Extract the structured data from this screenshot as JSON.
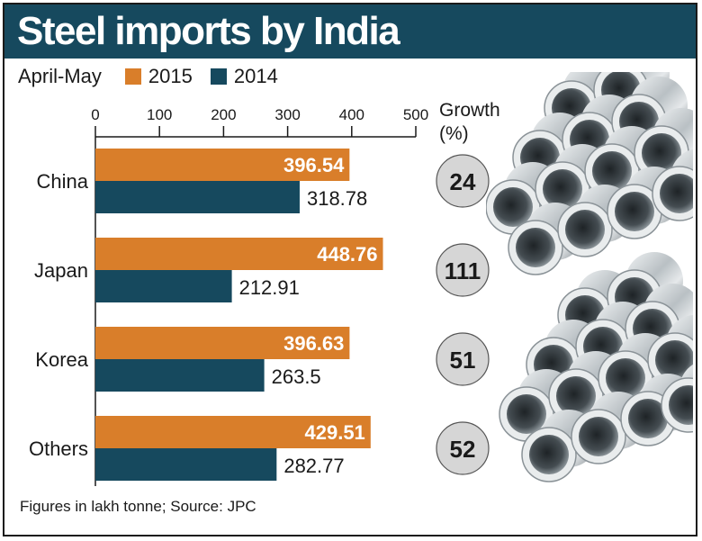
{
  "header": {
    "title": "Steel imports by India"
  },
  "legend": {
    "period": "April-May",
    "items": [
      {
        "label": "2015",
        "color": "#d97e2a"
      },
      {
        "label": "2014",
        "color": "#16495e"
      }
    ]
  },
  "growth_header": {
    "line1": "Growth",
    "line2": "(%)"
  },
  "footnote": "Figures in lakh tonne; Source: JPC",
  "chart_data": {
    "type": "bar",
    "orientation": "horizontal",
    "title": "Steel imports by India",
    "subtitle": "April-May",
    "categories": [
      "China",
      "Japan",
      "Korea",
      "Others"
    ],
    "series": [
      {
        "name": "2015",
        "color": "#d97e2a",
        "values": [
          396.54,
          448.76,
          396.63,
          429.51
        ],
        "labels": [
          "396.54",
          "448.76",
          "396.63",
          "429.51"
        ]
      },
      {
        "name": "2014",
        "color": "#16495e",
        "values": [
          318.78,
          212.91,
          263.5,
          282.77
        ],
        "labels": [
          "318.78",
          "212.91",
          "263.5",
          "282.77"
        ]
      }
    ],
    "growth_percent": [
      "24",
      "111",
      "51",
      "52"
    ],
    "x_ticks": [
      "0",
      "100",
      "200",
      "300",
      "400",
      "500"
    ],
    "xlim": [
      0,
      500
    ],
    "xlabel": "",
    "ylabel": "",
    "units": "lakh tonne"
  }
}
